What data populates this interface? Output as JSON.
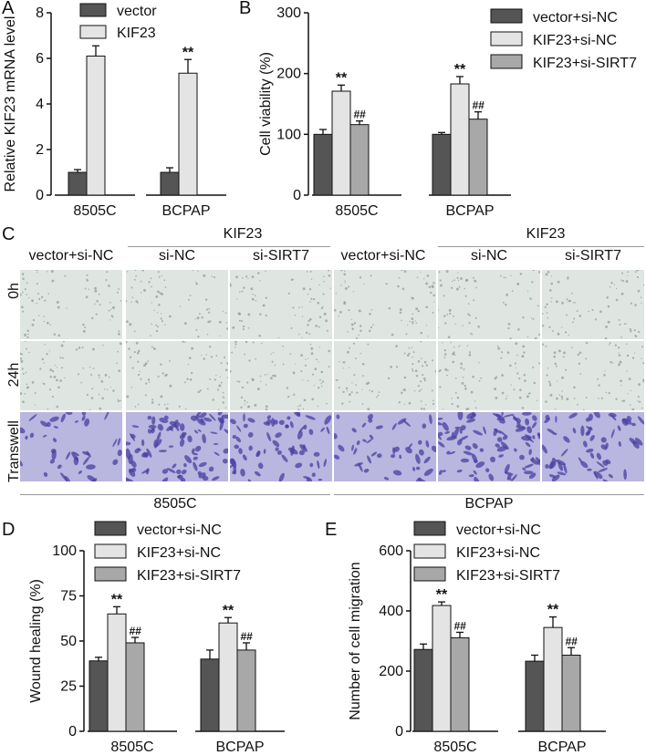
{
  "colors": {
    "dark": "#555555",
    "light": "#e4e4e4",
    "mid": "#a8a8a8",
    "wound_bg": "#dfe6e1",
    "transwell_bg": "#b9b6e0",
    "transwell_cells": "#4a3fa0"
  },
  "panel_letters": [
    "A",
    "B",
    "C",
    "D",
    "E"
  ],
  "chart_data": [
    {
      "panel": "A",
      "type": "bar",
      "ylabel": "Relative KIF23 mRNA level",
      "ylim": [
        0,
        8
      ],
      "yticks": [
        0,
        2,
        4,
        6,
        8
      ],
      "categories": [
        "8505C",
        "BCPAP"
      ],
      "legend_position": "top-right",
      "series": [
        {
          "name": "vector",
          "color_key": "dark",
          "values": [
            1.0,
            1.0
          ],
          "errors": [
            0.12,
            0.2
          ],
          "marks": [
            "",
            ""
          ]
        },
        {
          "name": "KIF23",
          "color_key": "light",
          "values": [
            6.1,
            5.35
          ],
          "errors": [
            0.45,
            0.6
          ],
          "marks": [
            "**",
            "**"
          ]
        }
      ]
    },
    {
      "panel": "B",
      "type": "bar",
      "ylabel": "Cell viability (%)",
      "ylim": [
        0,
        300
      ],
      "yticks": [
        0,
        100,
        200,
        300
      ],
      "categories": [
        "8505C",
        "BCPAP"
      ],
      "legend_position": "top-right",
      "series": [
        {
          "name": "vector+si-NC",
          "color_key": "dark",
          "values": [
            100,
            100
          ],
          "errors": [
            8,
            3
          ],
          "marks": [
            "",
            ""
          ]
        },
        {
          "name": "KIF23+si-NC",
          "color_key": "light",
          "values": [
            171,
            183
          ],
          "errors": [
            10,
            12
          ],
          "marks": [
            "**",
            "**"
          ]
        },
        {
          "name": "KIF23+si-SIRT7",
          "color_key": "mid",
          "values": [
            116,
            125
          ],
          "errors": [
            6,
            12
          ],
          "marks": [
            "##",
            "##"
          ]
        }
      ]
    },
    {
      "panel": "D",
      "type": "bar",
      "ylabel": "Wound healing (%)",
      "ylim": [
        0,
        100
      ],
      "yticks": [
        0,
        25,
        50,
        75,
        100
      ],
      "categories": [
        "8505C",
        "BCPAP"
      ],
      "legend_position": "top",
      "series": [
        {
          "name": "vector+si-NC",
          "color_key": "dark",
          "values": [
            39,
            40
          ],
          "errors": [
            2,
            5
          ],
          "marks": [
            "",
            ""
          ]
        },
        {
          "name": "KIF23+si-NC",
          "color_key": "light",
          "values": [
            65,
            60
          ],
          "errors": [
            4,
            3
          ],
          "marks": [
            "**",
            "**"
          ]
        },
        {
          "name": "KIF23+si-SIRT7",
          "color_key": "mid",
          "values": [
            49,
            45
          ],
          "errors": [
            3,
            4
          ],
          "marks": [
            "##",
            "##"
          ]
        }
      ]
    },
    {
      "panel": "E",
      "type": "bar",
      "ylabel": "Number of cell migration",
      "ylim": [
        0,
        600
      ],
      "yticks": [
        0,
        200,
        400,
        600
      ],
      "categories": [
        "8505C",
        "BCPAP"
      ],
      "legend_position": "top",
      "series": [
        {
          "name": "vector+si-NC",
          "color_key": "dark",
          "values": [
            272,
            233
          ],
          "errors": [
            18,
            20
          ],
          "marks": [
            "",
            ""
          ]
        },
        {
          "name": "KIF23+si-NC",
          "color_key": "light",
          "values": [
            418,
            345
          ],
          "errors": [
            12,
            35
          ],
          "marks": [
            "**",
            "**"
          ]
        },
        {
          "name": "KIF23+si-SIRT7",
          "color_key": "mid",
          "values": [
            311,
            253
          ],
          "errors": [
            18,
            25
          ],
          "marks": [
            "##",
            "##"
          ]
        }
      ]
    }
  ],
  "micrograph_panel": {
    "group_header": "KIF23",
    "column_labels": [
      "vector+si-NC",
      "si-NC",
      "si-SIRT7",
      "vector+si-NC",
      "si-NC",
      "si-SIRT7"
    ],
    "row_labels": [
      "0h",
      "24h",
      "Transwell"
    ],
    "cell_line_labels": [
      "8505C",
      "BCPAP"
    ]
  }
}
